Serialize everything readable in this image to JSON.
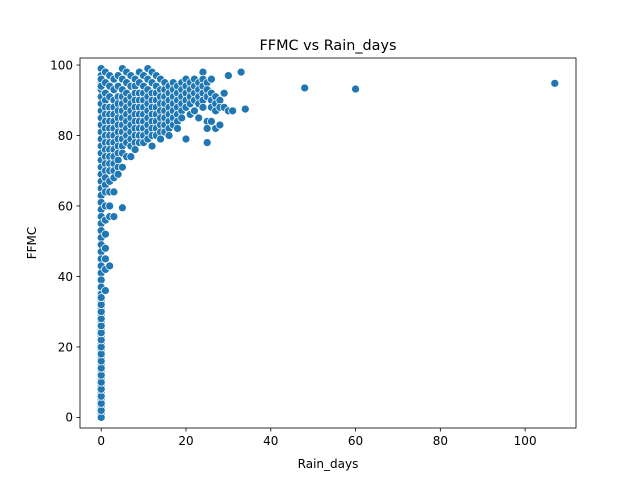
{
  "chart_data": {
    "type": "scatter",
    "title": "FFMC vs Rain_days",
    "xlabel": "Rain_days",
    "ylabel": "FFMC",
    "xlim": [
      -5,
      112
    ],
    "ylim": [
      -3,
      102
    ],
    "xticks": [
      0,
      20,
      40,
      60,
      80,
      100
    ],
    "yticks": [
      0,
      20,
      40,
      60,
      80,
      100
    ],
    "grid": false,
    "marker_color": "#1f77b4",
    "series": [
      {
        "x": [
          0,
          0,
          0,
          0,
          0,
          0,
          0,
          0,
          0,
          0,
          0,
          0,
          0,
          0,
          0,
          0,
          0,
          0,
          0,
          0,
          0,
          0,
          0,
          0,
          0,
          0,
          0,
          0,
          0,
          0,
          0,
          0,
          0,
          0,
          0,
          0,
          0,
          0,
          0,
          0,
          0,
          0,
          0,
          0,
          0,
          0,
          0,
          0,
          0,
          0,
          0,
          0,
          0,
          0,
          0,
          0,
          0,
          0,
          0,
          0,
          0,
          0,
          0,
          0,
          0,
          0,
          0,
          0,
          0,
          0,
          1,
          1,
          1,
          1,
          1,
          1,
          1,
          1,
          1,
          1,
          1,
          1,
          1,
          1,
          1,
          1,
          1,
          1,
          1,
          1,
          1,
          1,
          1,
          1,
          2,
          2,
          2,
          2,
          2,
          2,
          2,
          2,
          2,
          2,
          2,
          2,
          2,
          2,
          2,
          2,
          2,
          2,
          3,
          3,
          3,
          3,
          3,
          3,
          3,
          3,
          3,
          3,
          3,
          3,
          3,
          3,
          3,
          3,
          4,
          4,
          4,
          4,
          4,
          4,
          4,
          4,
          4,
          4,
          4,
          4,
          4,
          4,
          5,
          5,
          5,
          5,
          5,
          5,
          5,
          5,
          5,
          5,
          5,
          5,
          5,
          5,
          6,
          6,
          6,
          6,
          6,
          6,
          6,
          6,
          6,
          6,
          6,
          7,
          7,
          7,
          7,
          7,
          7,
          7,
          7,
          7,
          7,
          7,
          8,
          8,
          8,
          8,
          8,
          8,
          8,
          8,
          8,
          8,
          8,
          9,
          9,
          9,
          9,
          9,
          9,
          9,
          9,
          9,
          9,
          10,
          10,
          10,
          10,
          10,
          10,
          10,
          10,
          10,
          10,
          11,
          11,
          11,
          11,
          11,
          11,
          11,
          11,
          11,
          11,
          12,
          12,
          12,
          12,
          12,
          12,
          12,
          12,
          12,
          12,
          13,
          13,
          13,
          13,
          13,
          13,
          13,
          13,
          13,
          14,
          14,
          14,
          14,
          14,
          14,
          14,
          14,
          14,
          15,
          15,
          15,
          15,
          15,
          15,
          15,
          15,
          16,
          16,
          16,
          16,
          16,
          16,
          16,
          16,
          17,
          17,
          17,
          17,
          17,
          17,
          17,
          18,
          18,
          18,
          18,
          18,
          18,
          18,
          19,
          19,
          19,
          19,
          19,
          19,
          20,
          20,
          20,
          20,
          20,
          20,
          21,
          21,
          21,
          21,
          21,
          22,
          22,
          22,
          22,
          22,
          23,
          23,
          23,
          23,
          23,
          24,
          24,
          24,
          24,
          24,
          24,
          25,
          25,
          25,
          25,
          25,
          25,
          26,
          26,
          26,
          26,
          26,
          27,
          27,
          27,
          27,
          28,
          28,
          28,
          29,
          29,
          30,
          30,
          31,
          33,
          34,
          48,
          60,
          107
        ],
        "y": [
          99,
          97,
          95,
          93,
          91,
          89,
          87,
          85,
          83,
          81,
          79,
          77,
          75,
          73,
          71,
          69,
          67,
          65,
          63,
          61,
          59,
          57,
          55,
          53,
          51,
          49,
          47,
          45,
          43,
          41,
          39,
          37,
          35,
          33,
          31,
          29,
          27,
          25,
          23,
          21,
          19,
          17,
          15,
          13,
          11,
          9,
          7,
          5,
          3,
          1,
          0,
          2,
          4,
          6,
          8,
          10,
          12,
          14,
          16,
          18,
          20,
          22,
          24,
          26,
          28,
          30,
          32,
          34,
          96,
          94,
          98,
          95,
          92,
          90,
          88,
          86,
          84,
          82,
          80,
          78,
          76,
          74,
          72,
          70,
          68,
          66,
          64,
          60,
          56,
          52,
          48,
          45,
          42,
          36,
          97,
          94,
          91,
          88,
          86,
          84,
          82,
          80,
          78,
          76,
          74,
          72,
          70,
          67,
          64,
          60,
          57,
          43,
          96,
          93,
          90,
          88,
          86,
          84,
          82,
          80,
          78,
          76,
          74,
          72,
          70,
          68,
          64,
          57,
          97,
          94,
          91,
          89,
          87,
          85,
          83,
          81,
          79,
          77,
          75,
          73,
          71,
          69,
          99,
          96,
          93,
          91,
          89,
          87,
          85,
          83,
          81,
          79,
          77,
          75,
          71,
          59.5,
          98,
          95,
          92,
          90,
          88,
          86,
          84,
          82,
          80,
          78,
          74,
          97,
          94,
          91,
          89,
          87,
          85,
          83,
          81,
          79,
          77,
          74,
          96,
          94,
          92,
          90,
          88,
          86,
          84,
          82,
          80,
          78,
          76,
          98,
          95,
          92,
          90,
          88,
          86,
          84,
          82,
          80,
          78,
          97,
          94,
          92,
          90,
          88,
          86,
          84,
          82,
          80,
          78,
          99,
          96,
          93,
          91,
          89,
          87,
          85,
          83,
          81,
          79,
          98,
          95,
          92,
          90,
          88,
          86,
          84,
          82,
          80,
          77,
          97,
          94,
          92,
          90,
          88,
          86,
          84,
          82,
          80,
          96,
          93,
          91,
          89,
          87,
          85,
          83,
          81,
          79,
          95,
          93,
          91,
          89,
          87,
          85,
          83,
          81,
          94,
          92,
          90,
          88,
          86,
          84,
          82,
          80,
          95,
          93,
          91,
          89,
          87,
          85,
          83,
          94,
          92,
          90,
          88,
          86,
          84,
          82,
          95,
          93,
          91,
          89,
          87,
          85,
          96,
          94,
          92,
          90,
          88,
          79,
          95,
          93,
          91,
          89,
          86,
          96,
          94,
          92,
          90,
          87,
          95,
          93,
          91,
          89,
          85,
          98,
          96,
          94,
          92,
          90,
          88,
          95,
          93,
          91,
          84,
          82,
          78,
          96,
          92,
          90,
          88,
          84,
          91,
          89,
          87,
          82,
          90,
          88,
          83,
          92,
          88,
          97,
          87,
          87,
          98,
          87.5,
          93.5,
          93.2,
          94.8
        ]
      }
    ]
  }
}
